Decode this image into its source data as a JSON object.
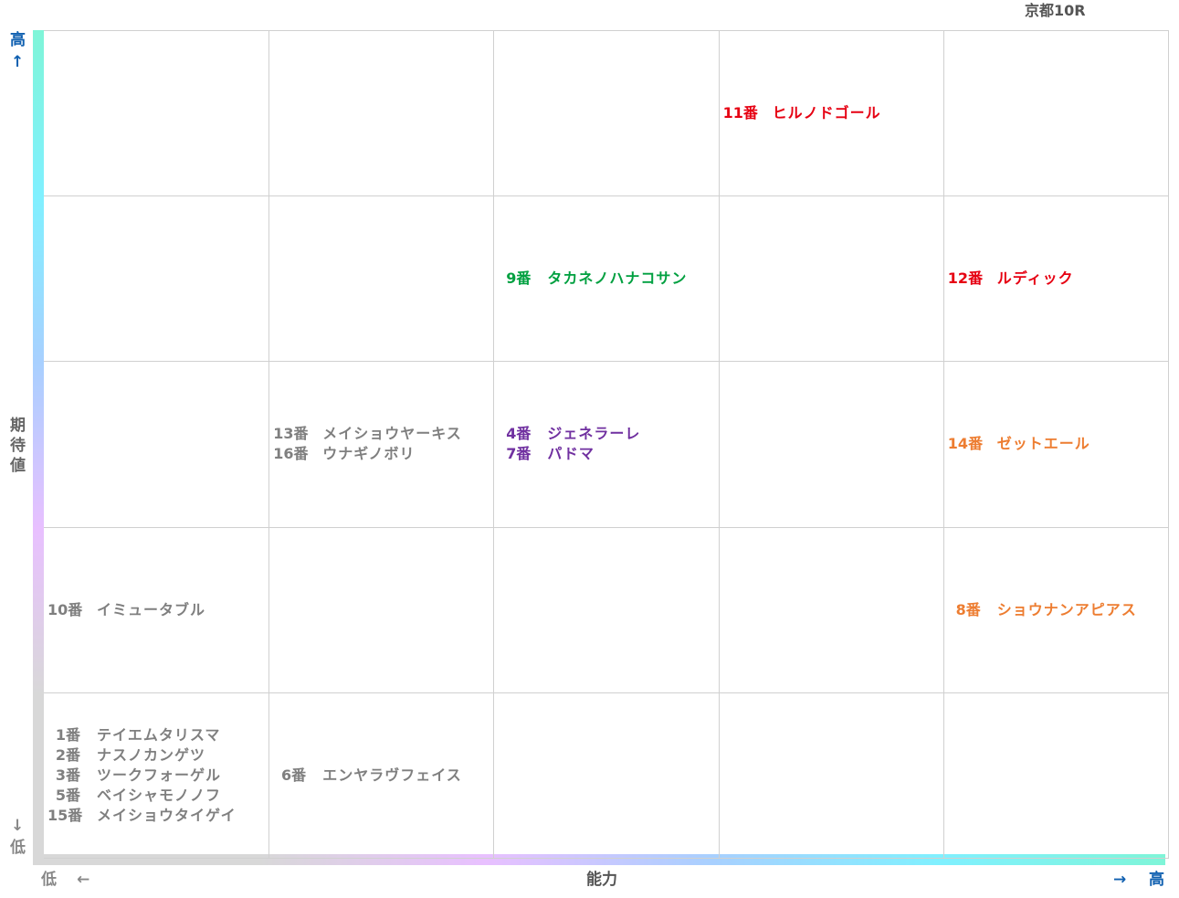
{
  "title": "京都10R",
  "axes": {
    "y_label": "期待値",
    "y_high": "高",
    "y_high_arrow": "↑",
    "y_low": "低",
    "y_low_arrow": "↓",
    "x_label": "能力",
    "x_low": "低",
    "x_low_arrow": "←",
    "x_high": "高",
    "x_high_arrow": "→"
  },
  "colors": {
    "red": "#e60012",
    "green": "#00a040",
    "purple": "#7030a0",
    "orange": "#ed7d31",
    "gray": "#7f7f7f"
  },
  "cells": [
    {
      "row": 0,
      "col": 3,
      "color": "#e60012",
      "entries": [
        {
          "num": "11番",
          "name": "ヒルノドゴール"
        }
      ]
    },
    {
      "row": 1,
      "col": 2,
      "color": "#00a040",
      "entries": [
        {
          "num": "9番",
          "name": "タカネノハナコサン"
        }
      ]
    },
    {
      "row": 1,
      "col": 4,
      "color": "#e60012",
      "entries": [
        {
          "num": "12番",
          "name": "ルディック"
        }
      ]
    },
    {
      "row": 2,
      "col": 1,
      "color": "#7f7f7f",
      "entries": [
        {
          "num": "13番",
          "name": "メイショウヤーキス"
        },
        {
          "num": "16番",
          "name": "ウナギノボリ"
        }
      ]
    },
    {
      "row": 2,
      "col": 2,
      "color": "#7030a0",
      "entries": [
        {
          "num": "4番",
          "name": "ジェネラーレ"
        },
        {
          "num": "7番",
          "name": "パドマ"
        }
      ]
    },
    {
      "row": 2,
      "col": 4,
      "color": "#ed7d31",
      "entries": [
        {
          "num": "14番",
          "name": "ゼットエール"
        }
      ]
    },
    {
      "row": 3,
      "col": 0,
      "color": "#7f7f7f",
      "entries": [
        {
          "num": "10番",
          "name": "イミュータブル"
        }
      ]
    },
    {
      "row": 3,
      "col": 4,
      "color": "#ed7d31",
      "entries": [
        {
          "num": "8番",
          "name": "ショウナンアピアス"
        }
      ]
    },
    {
      "row": 4,
      "col": 0,
      "color": "#7f7f7f",
      "entries": [
        {
          "num": "1番",
          "name": "テイエムタリスマ"
        },
        {
          "num": "2番",
          "name": "ナスノカンゲツ"
        },
        {
          "num": "3番",
          "name": "ツークフォーゲル"
        },
        {
          "num": "5番",
          "name": "ベイシャモノノフ"
        },
        {
          "num": "15番",
          "name": "メイショウタイゲイ"
        }
      ]
    },
    {
      "row": 4,
      "col": 1,
      "color": "#7f7f7f",
      "entries": [
        {
          "num": "6番",
          "name": "エンヤラヴフェイス"
        }
      ]
    }
  ]
}
